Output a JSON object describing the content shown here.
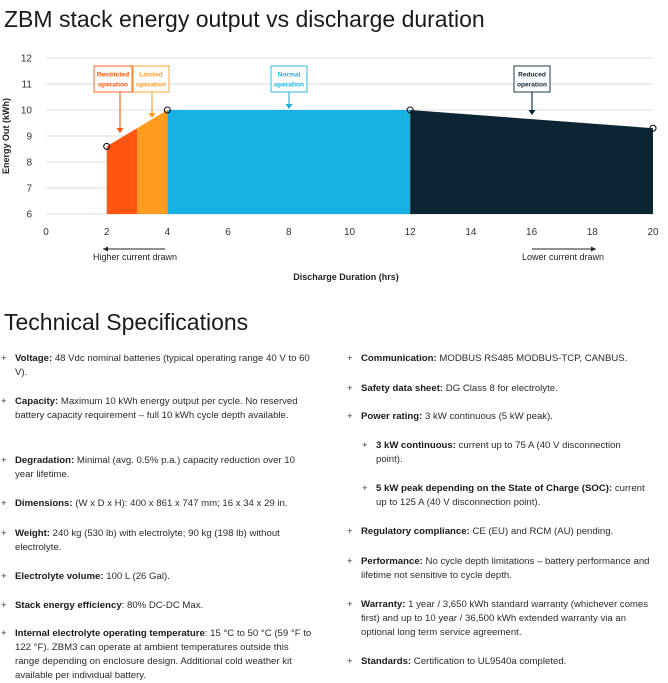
{
  "page_title": "ZBM stack energy output vs discharge duration",
  "chart_data": {
    "type": "area",
    "ylabel": "Energy Out (kWh)",
    "xlabel": "Discharge Duration (hrs)",
    "xlim": [
      0,
      20
    ],
    "ylim": [
      6,
      12
    ],
    "x_ticks": [
      "0",
      "2",
      "4",
      "6",
      "8",
      "10",
      "12",
      "14",
      "16",
      "18",
      "20"
    ],
    "y_ticks": [
      "6",
      "7",
      "8",
      "9",
      "10",
      "11",
      "12"
    ],
    "regions": [
      {
        "label": "Restricted operation",
        "x_start": 2,
        "x_end": 3,
        "color": "#FF5511"
      },
      {
        "label": "Limited operation",
        "x_start": 3,
        "x_end": 4,
        "color": "#FF9B1F"
      },
      {
        "label": "Normal operation",
        "x_start": 4,
        "x_end": 12,
        "color": "#17B1E3"
      },
      {
        "label": "Reduced operation",
        "x_start": 12,
        "x_end": 20,
        "color": "#0B2535"
      }
    ],
    "curve": [
      {
        "x": 2,
        "y": 8.6
      },
      {
        "x": 4,
        "y": 10
      },
      {
        "x": 12,
        "y": 10
      },
      {
        "x": 20,
        "y": 9.3
      }
    ],
    "marked_points": [
      {
        "x": 2,
        "y": 8.6
      },
      {
        "x": 4,
        "y": 10
      },
      {
        "x": 12,
        "y": 10
      },
      {
        "x": 20,
        "y": 9.3
      }
    ],
    "annotations": [
      {
        "text": "Higher current drawn",
        "direction": "left"
      },
      {
        "text": "Lower current drawn",
        "direction": "right"
      }
    ]
  },
  "specs_heading": "Technical Specifications",
  "specs_left": [
    {
      "label": "Voltage:",
      "text": "48 Vdc nominal batteries (typical operating range 40 V to 60 V)."
    },
    {
      "label": "Capacity:",
      "text": "Maximum 10 kWh energy output per cycle. No reserved battery capacity requirement – full 10 kWh cycle depth available."
    },
    {
      "label": "Degradation:",
      "text": "Minimal (avg. 0.5% p.a.) capacity reduction over 10 year lifetime."
    },
    {
      "label": "Dimensions:",
      "text": "(W x D x H): 400 x 861 x 747 mm; 16 x 34 x 29 in."
    },
    {
      "label": "Weight:",
      "text": "240 kg (530 lb) with electrolyte; 90 kg (198 lb) without electrolyte."
    },
    {
      "label": "Electrolyte volume:",
      "text": "100 L (26 Gal)."
    },
    {
      "label": "Stack energy efficiency",
      "text": ": 80% DC-DC Max."
    },
    {
      "label": "Internal electrolyte operating temperature",
      "text": ": 15 °C to 50 °C (59 °F to 122 °F). ZBM3 can operate at ambient temperatures outside this range depending on enclosure design. Additional cold weather kit available per individual battery."
    }
  ],
  "specs_right": [
    {
      "label": "Communication:",
      "text": "MODBUS RS485 MODBUS-TCP, CANBUS."
    },
    {
      "label": "Safety data sheet:",
      "text": "DG Class 8 for electrolyte."
    },
    {
      "label": "Power rating:",
      "text": "3 kW continuous (5 kW peak)."
    },
    {
      "label": "3 kW continuous:",
      "text": "current up to 75 A (40 V disconnection point)."
    },
    {
      "label": "5 kW peak depending on the State of Charge (SOC):",
      "text": "current up to 125 A (40 V disconnection point)."
    },
    {
      "label": "Regulatory compliance:",
      "text": "CE (EU) and RCM (AU) pending."
    },
    {
      "label": "Performance:",
      "text": "No cycle depth limitations – battery performance and lifetime not sensitive to cycle depth."
    },
    {
      "label": "Warranty:",
      "text": "1 year / 3,650 kWh standard warranty (whichever comes first) and up to 10 year / 36,500 kWh extended warranty via an optional long term service agreement."
    },
    {
      "label": "Standards:",
      "text": "Certification to UL9540a completed."
    }
  ]
}
